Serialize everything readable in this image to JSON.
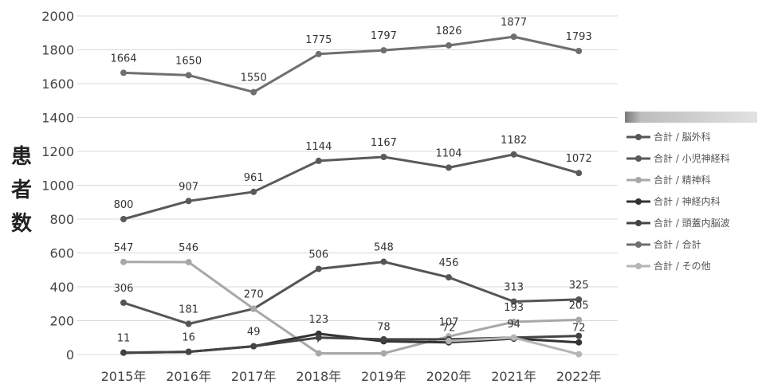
{
  "chart_data": {
    "type": "line",
    "title": "",
    "xlabel": "",
    "ylabel": "患者数",
    "ylim": [
      0,
      2000
    ],
    "yticks": [
      "0",
      "200",
      "400",
      "600",
      "800",
      "1000",
      "1200",
      "1400",
      "1600",
      "1800",
      "2000"
    ],
    "categories": [
      "2015年",
      "2016年",
      "2017年",
      "2018年",
      "2019年",
      "2020年",
      "2021年",
      "2022年"
    ],
    "grid": true,
    "legend_position": "right",
    "series": [
      {
        "name": "合計 / 脳外科",
        "color": "#555555",
        "values": [
          306,
          181,
          270,
          506,
          548,
          456,
          313,
          325
        ],
        "labels": [
          "306",
          "181",
          "270",
          "506",
          "548",
          "456",
          "313",
          "325"
        ]
      },
      {
        "name": "合計 / 小児神経科",
        "color": "#5a5a5a",
        "values": [
          800,
          907,
          961,
          1144,
          1167,
          1104,
          1182,
          1072
        ],
        "labels": [
          "800",
          "907",
          "961",
          "1144",
          "1167",
          "1104",
          "1182",
          "1072"
        ]
      },
      {
        "name": "合計 / 精神科",
        "color": "#a8a8a8",
        "values": [
          547,
          546,
          270,
          7,
          7,
          107,
          193,
          205
        ],
        "labels": [
          "547",
          "546",
          "",
          "7",
          "",
          "107",
          "193",
          "205"
        ]
      },
      {
        "name": "合計 / 神経内科",
        "color": "#333333",
        "values": [
          11,
          16,
          49,
          123,
          78,
          72,
          94,
          72
        ],
        "labels": [
          "11",
          "16",
          "49",
          "123",
          "78",
          "72",
          "94",
          "72"
        ]
      },
      {
        "name": "合計 / 頭蓋内脳波",
        "color": "#444444",
        "values": [
          11,
          16,
          49,
          100,
          90,
          90,
          100,
          110
        ],
        "labels": []
      },
      {
        "name": "合計 / 合計",
        "color": "#6f6f6f",
        "values": [
          1664,
          1650,
          1550,
          1775,
          1797,
          1826,
          1877,
          1793
        ],
        "labels": [
          "1664",
          "1650",
          "1550",
          "1775",
          "1797",
          "1826",
          "1877",
          "1793"
        ]
      },
      {
        "name": "合計 / その他",
        "color": "#b5b5b5",
        "values": [
          null,
          null,
          null,
          null,
          null,
          80,
          100,
          2
        ],
        "labels": []
      }
    ]
  }
}
